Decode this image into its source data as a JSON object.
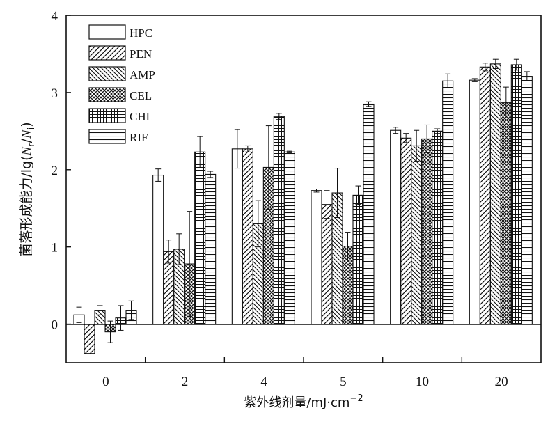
{
  "chart_data": {
    "type": "bar",
    "xlabel": "紫外线剂量/mJ·cm",
    "xlabel_sup": "−2",
    "ylabel_parts": [
      "菌落形成能力/lg(",
      "N",
      "r",
      "/",
      "N",
      "i",
      ")"
    ],
    "ylim": [
      -0.5,
      4
    ],
    "yticks": [
      0,
      1,
      2,
      3,
      4
    ],
    "categories": [
      "0",
      "2",
      "4",
      "5",
      "10",
      "20"
    ],
    "legend_position": "top-left",
    "series": [
      {
        "name": "HPC",
        "pattern": "none",
        "values": [
          0.12,
          1.93,
          2.27,
          1.73,
          2.51,
          3.16
        ],
        "errors": [
          0.1,
          0.08,
          0.25,
          0.02,
          0.04,
          0.02
        ]
      },
      {
        "name": "PEN",
        "pattern": "diag-up",
        "values": [
          -0.38,
          0.94,
          2.27,
          1.55,
          2.41,
          3.33
        ],
        "errors": [
          0.0,
          0.15,
          0.04,
          0.18,
          0.06,
          0.05
        ]
      },
      {
        "name": "AMP",
        "pattern": "diag-down",
        "values": [
          0.18,
          0.97,
          1.3,
          1.7,
          2.31,
          3.37
        ],
        "errors": [
          0.06,
          0.2,
          0.3,
          0.32,
          0.2,
          0.06
        ]
      },
      {
        "name": "CEL",
        "pattern": "cross",
        "values": [
          -0.1,
          0.78,
          2.03,
          1.01,
          2.4,
          2.87
        ],
        "errors": [
          0.14,
          0.68,
          0.54,
          0.18,
          0.18,
          0.2
        ]
      },
      {
        "name": "CHL",
        "pattern": "grid",
        "values": [
          0.08,
          2.23,
          2.69,
          1.67,
          2.5,
          3.36
        ],
        "errors": [
          0.16,
          0.2,
          0.04,
          0.12,
          0.03,
          0.07
        ]
      },
      {
        "name": "RIF",
        "pattern": "horiz",
        "values": [
          0.18,
          1.94,
          2.23,
          2.85,
          3.15,
          3.21
        ],
        "errors": [
          0.12,
          0.04,
          0.01,
          0.03,
          0.09,
          0.06
        ]
      }
    ]
  }
}
